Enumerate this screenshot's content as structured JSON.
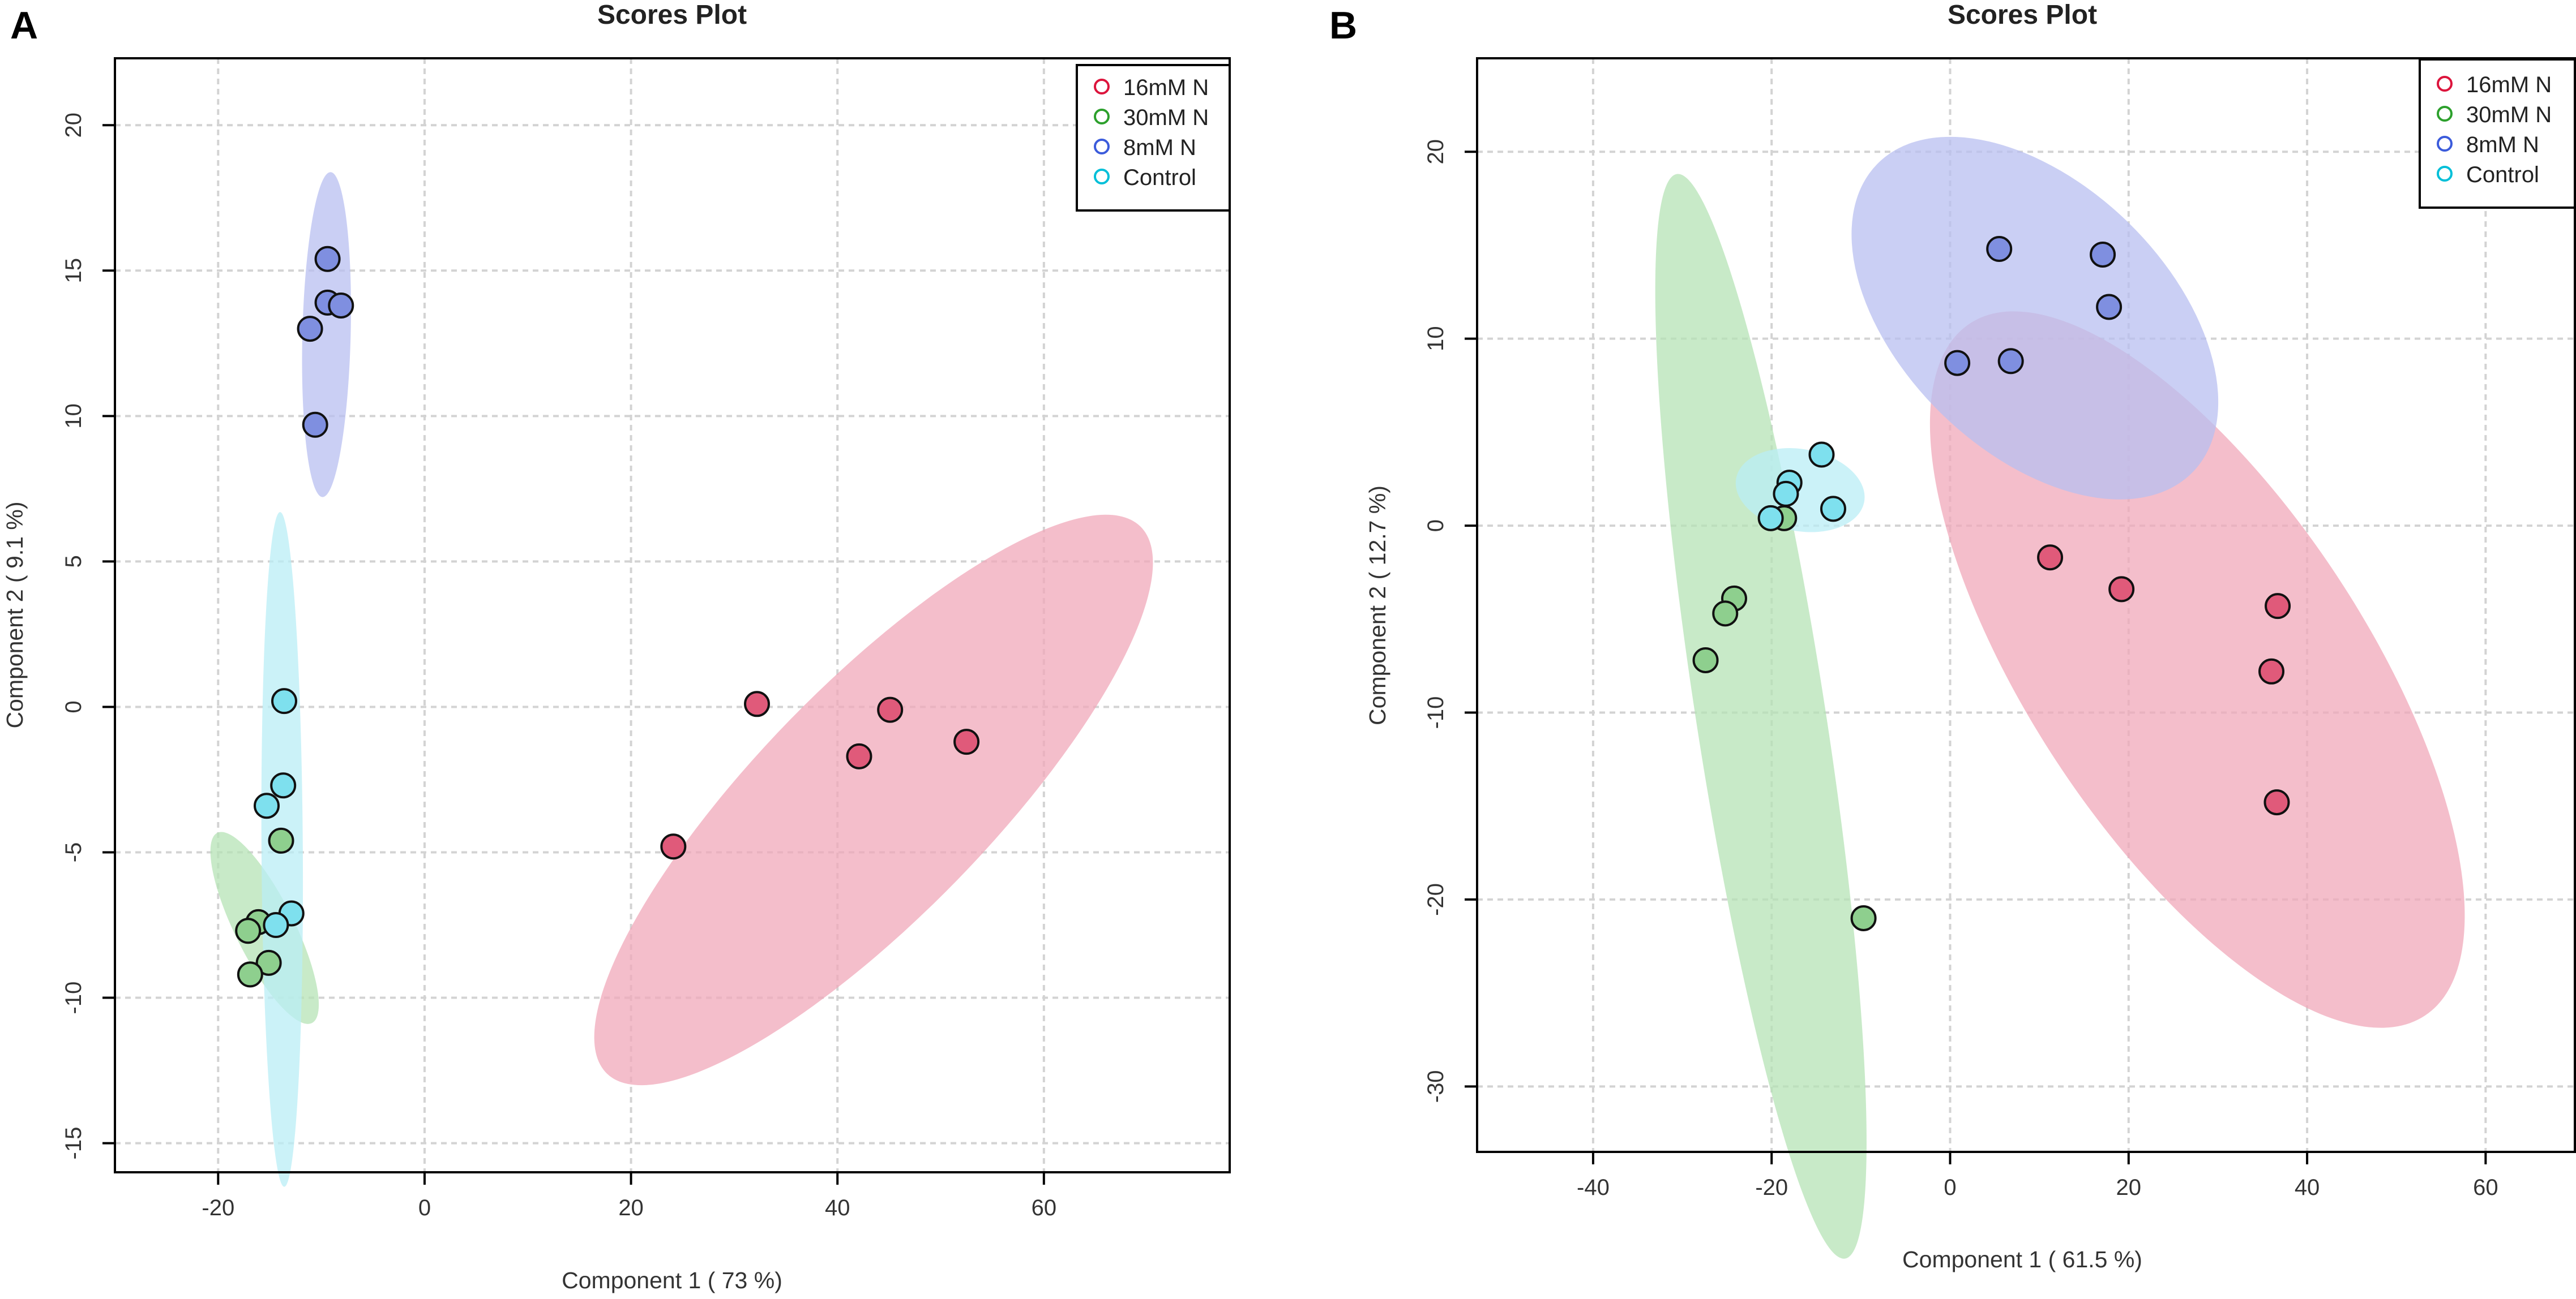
{
  "chart_data": [
    {
      "panel": "A",
      "type": "scatter",
      "title": "Scores Plot",
      "xlabel": "Component 1 ( 73 %)",
      "ylabel": "Component 2 ( 9.1 %)",
      "xlim": [
        -30,
        78
      ],
      "ylim": [
        -16,
        22.3
      ],
      "xticks": [
        -20,
        0,
        20,
        40,
        60
      ],
      "yticks": [
        -15,
        -10,
        -5,
        0,
        5,
        10,
        15,
        20
      ],
      "grid": true,
      "legend_position": "top-right",
      "series": [
        {
          "name": "16mM N",
          "color": "#dc143c",
          "fill": "#e05a7a",
          "ellipse": {
            "cx": 43.5,
            "cy": -3.2,
            "rx": 27.5,
            "ry": 4.2,
            "angle": 20,
            "fill": "#f0a8ba"
          },
          "points": [
            [
              32.2,
              0.1
            ],
            [
              45.1,
              -0.1
            ],
            [
              42.1,
              -1.7
            ],
            [
              52.5,
              -1.2
            ],
            [
              24.1,
              -4.8
            ]
          ]
        },
        {
          "name": "30mM N",
          "color": "#2ca02c",
          "fill": "#8ecf8e",
          "ellipse": {
            "cx": -15.5,
            "cy": -7.6,
            "rx": 2.6,
            "ry": 3.7,
            "angle": 10,
            "fill": "#b5e3b5"
          },
          "points": [
            [
              -13.9,
              -4.6
            ],
            [
              -16.1,
              -7.4
            ],
            [
              -17.1,
              -7.7
            ],
            [
              -15.1,
              -8.8
            ],
            [
              -16.9,
              -9.2
            ]
          ]
        },
        {
          "name": "8mM N",
          "color": "#3b5bdb",
          "fill": "#7f8fe0",
          "ellipse": {
            "cx": -9.5,
            "cy": 12.8,
            "rx": 5.6,
            "ry": 2.3,
            "angle": 86,
            "fill": "#b8bff0"
          },
          "points": [
            [
              -9.4,
              15.4
            ],
            [
              -9.4,
              13.9
            ],
            [
              -8.1,
              13.8
            ],
            [
              -11.1,
              13.0
            ],
            [
              -10.6,
              9.7
            ]
          ]
        },
        {
          "name": "Control",
          "color": "#00bfd8",
          "fill": "#7ee0ee",
          "ellipse": {
            "cx": -13.8,
            "cy": -4.9,
            "rx": 11.6,
            "ry": 2.0,
            "angle": 91,
            "fill": "#b9eef5"
          },
          "points": [
            [
              -13.6,
              0.2
            ],
            [
              -13.7,
              -2.7
            ],
            [
              -15.3,
              -3.4
            ],
            [
              -12.9,
              -7.1
            ],
            [
              -14.4,
              -7.5
            ]
          ]
        }
      ]
    },
    {
      "panel": "B",
      "type": "scatter",
      "title": "Scores Plot",
      "xlabel": "Component 1 ( 61.5 %)",
      "ylabel": "Component 2 ( 12.7 %)",
      "xlim": [
        -53,
        70
      ],
      "ylim": [
        -33.5,
        25
      ],
      "xticks": [
        -40,
        -20,
        0,
        20,
        40,
        60
      ],
      "yticks": [
        -30,
        -20,
        -10,
        0,
        10,
        20
      ],
      "grid": true,
      "legend_position": "top-right",
      "series": [
        {
          "name": "16mM N",
          "color": "#dc143c",
          "fill": "#e05a7a",
          "ellipse": {
            "cx": 27.7,
            "cy": -7.7,
            "rx": 31.5,
            "ry": 10.5,
            "angle": -36,
            "fill": "#f0a8ba"
          },
          "points": [
            [
              11.2,
              -1.7
            ],
            [
              19.2,
              -3.4
            ],
            [
              36.7,
              -4.3
            ],
            [
              36.0,
              -7.8
            ],
            [
              36.6,
              -14.8
            ]
          ]
        },
        {
          "name": "30mM N",
          "color": "#2ca02c",
          "fill": "#8ecf8e",
          "ellipse": {
            "cx": -21.2,
            "cy": -10.2,
            "rx": 30.5,
            "ry": 6.3,
            "angle": 108,
            "fill": "#b5e3b5"
          },
          "points": [
            [
              -18.6,
              0.4
            ],
            [
              -24.2,
              -3.9
            ],
            [
              -25.2,
              -4.7
            ],
            [
              -27.4,
              -7.2
            ],
            [
              -9.7,
              -21.0
            ]
          ]
        },
        {
          "name": "8mM N",
          "color": "#3b5bdb",
          "fill": "#7f8fe0",
          "ellipse": {
            "cx": 9.5,
            "cy": 11.1,
            "rx": 19.5,
            "ry": 7.7,
            "angle": -25,
            "fill": "#b8bff0"
          },
          "points": [
            [
              5.5,
              14.8
            ],
            [
              17.1,
              14.5
            ],
            [
              17.8,
              11.7
            ],
            [
              0.8,
              8.7
            ],
            [
              6.8,
              8.8
            ]
          ]
        },
        {
          "name": "Control",
          "color": "#00bfd8",
          "fill": "#7ee0ee",
          "ellipse": {
            "cx": -16.8,
            "cy": 1.9,
            "rx": 7.2,
            "ry": 2.2,
            "angle": -5,
            "fill": "#b9eef5"
          },
          "points": [
            [
              -14.4,
              3.8
            ],
            [
              -18.0,
              2.3
            ],
            [
              -18.4,
              1.7
            ],
            [
              -13.1,
              0.9
            ],
            [
              -20.1,
              0.4
            ]
          ]
        }
      ]
    }
  ]
}
